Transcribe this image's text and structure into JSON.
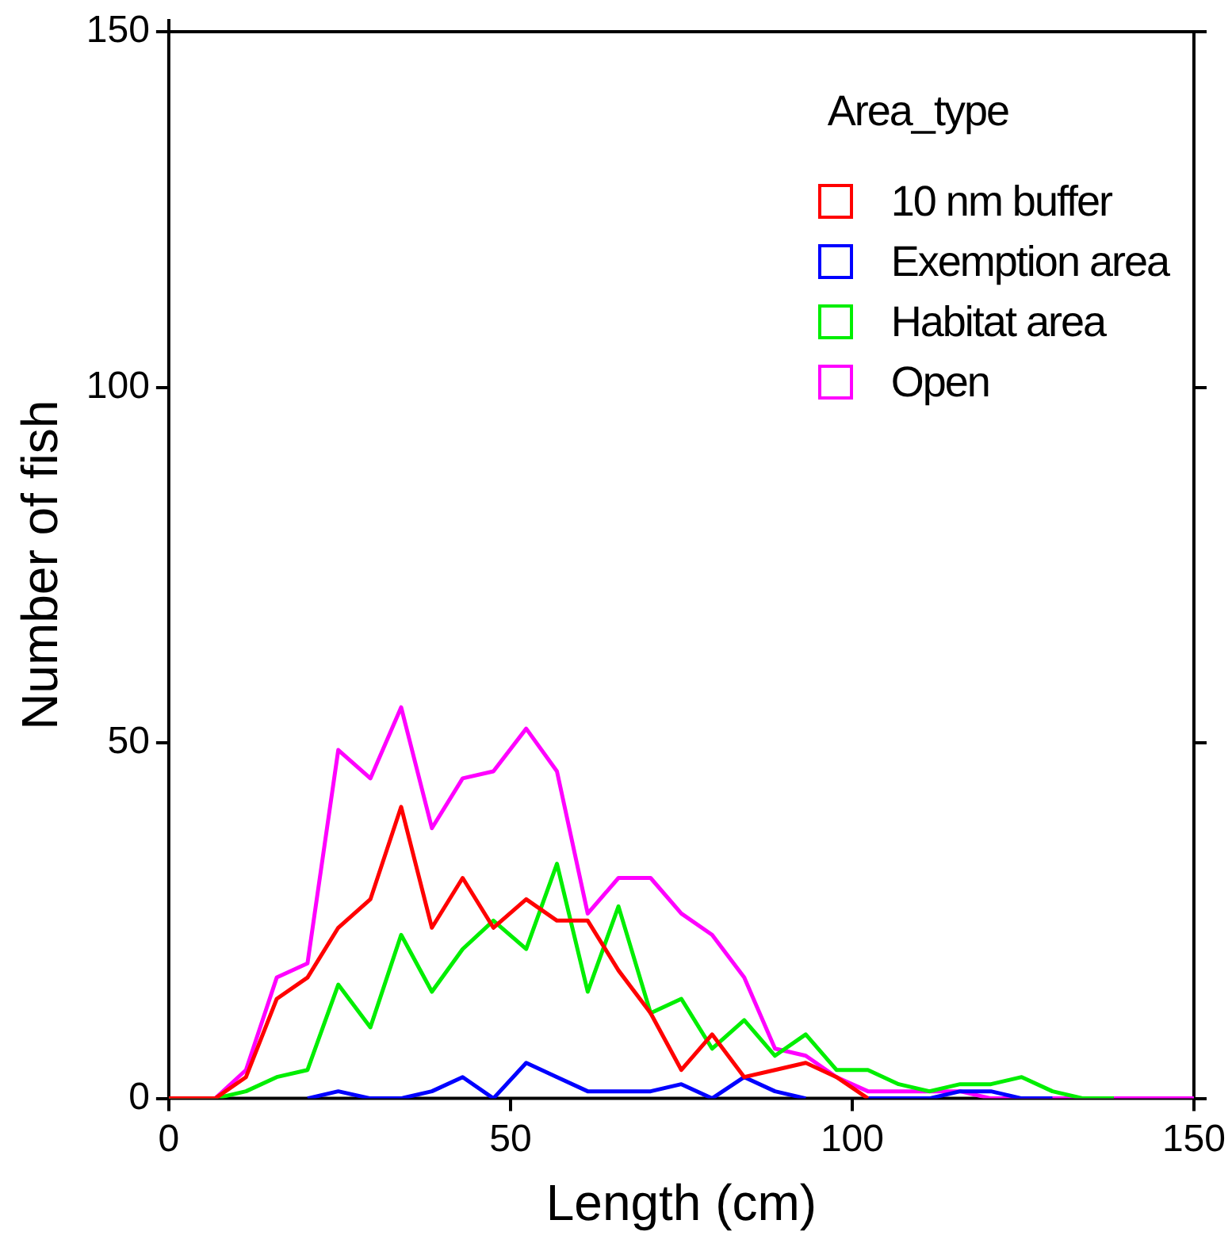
{
  "chart_data": {
    "type": "line",
    "xlabel": "Length (cm)",
    "ylabel": "Number of fish",
    "legend_title": "Area_type",
    "x": [
      0,
      6.8,
      11.3,
      15.8,
      20.3,
      24.8,
      29.5,
      34,
      38.5,
      43,
      47.5,
      52.3,
      56.8,
      61.3,
      65.8,
      70.5,
      75,
      79.5,
      84.2,
      88.7,
      93.2,
      97.7,
      102.3,
      106.8,
      111.3,
      115.8,
      120.3,
      124.8,
      129.3,
      133.8,
      138.3,
      142.8,
      147.3,
      150
    ],
    "series": [
      {
        "name": "10 nm buffer",
        "color": "#ff0000",
        "x": [
          0,
          6.8,
          11.3,
          15.8,
          20.3,
          24.8,
          29.5,
          34,
          38.5,
          43,
          47.5,
          52.3,
          56.8,
          61.3,
          65.8,
          70.5,
          75,
          79.5,
          84.2,
          88.7,
          93.2,
          97.7,
          102.3
        ],
        "values": [
          0,
          0,
          3,
          14,
          17,
          24,
          28,
          41,
          24,
          31,
          24,
          28,
          25,
          25,
          18,
          12,
          4,
          9,
          3,
          4,
          5,
          3,
          0
        ]
      },
      {
        "name": "Exemption area",
        "color": "#0000ff",
        "x": [
          20.3,
          24.8,
          29.5,
          34,
          38.5,
          43,
          47.5,
          52.3,
          56.8,
          61.3,
          65.8,
          70.5,
          75,
          79.5,
          84.2,
          88.7,
          93.2,
          97.7,
          102.3,
          106.8,
          111.3,
          115.8,
          120.3,
          124.8,
          129.3
        ],
        "values": [
          0,
          1,
          0,
          0,
          1,
          3,
          0,
          5,
          3,
          1,
          1,
          1,
          2,
          0,
          3,
          1,
          0,
          null,
          0,
          0,
          0,
          1,
          1,
          0,
          0
        ]
      },
      {
        "name": "Habitat area",
        "color": "#00ee00",
        "x": [
          0,
          6.8,
          11.3,
          15.8,
          20.3,
          24.8,
          29.5,
          34,
          38.5,
          43,
          47.5,
          52.3,
          56.8,
          61.3,
          65.8,
          70.5,
          75,
          79.5,
          84.2,
          88.7,
          93.2,
          97.7,
          102.3,
          106.8,
          111.3,
          115.8,
          120.3,
          124.8,
          129.3,
          133.8,
          138.3
        ],
        "values": [
          0,
          0,
          1,
          3,
          4,
          16,
          10,
          23,
          15,
          21,
          25,
          21,
          33,
          15,
          27,
          12,
          14,
          7,
          11,
          6,
          9,
          4,
          4,
          2,
          1,
          2,
          2,
          3,
          1,
          0,
          0
        ]
      },
      {
        "name": "Open",
        "color": "#ff00ff",
        "values": [
          0,
          0,
          4,
          17,
          19,
          49,
          45,
          55,
          38,
          45,
          46,
          52,
          46,
          26,
          31,
          31,
          26,
          23,
          17,
          7,
          6,
          3,
          1,
          1,
          1,
          1,
          0,
          0,
          0,
          0,
          0,
          0,
          0,
          0
        ]
      }
    ],
    "xlim": [
      0,
      150
    ],
    "xticks": [
      0,
      50,
      100,
      150
    ],
    "ylim": [
      0,
      150
    ],
    "yticks": [
      0,
      50,
      100,
      150
    ],
    "grid": false,
    "legend": "top right",
    "marker": "none",
    "line_style": "solid"
  }
}
